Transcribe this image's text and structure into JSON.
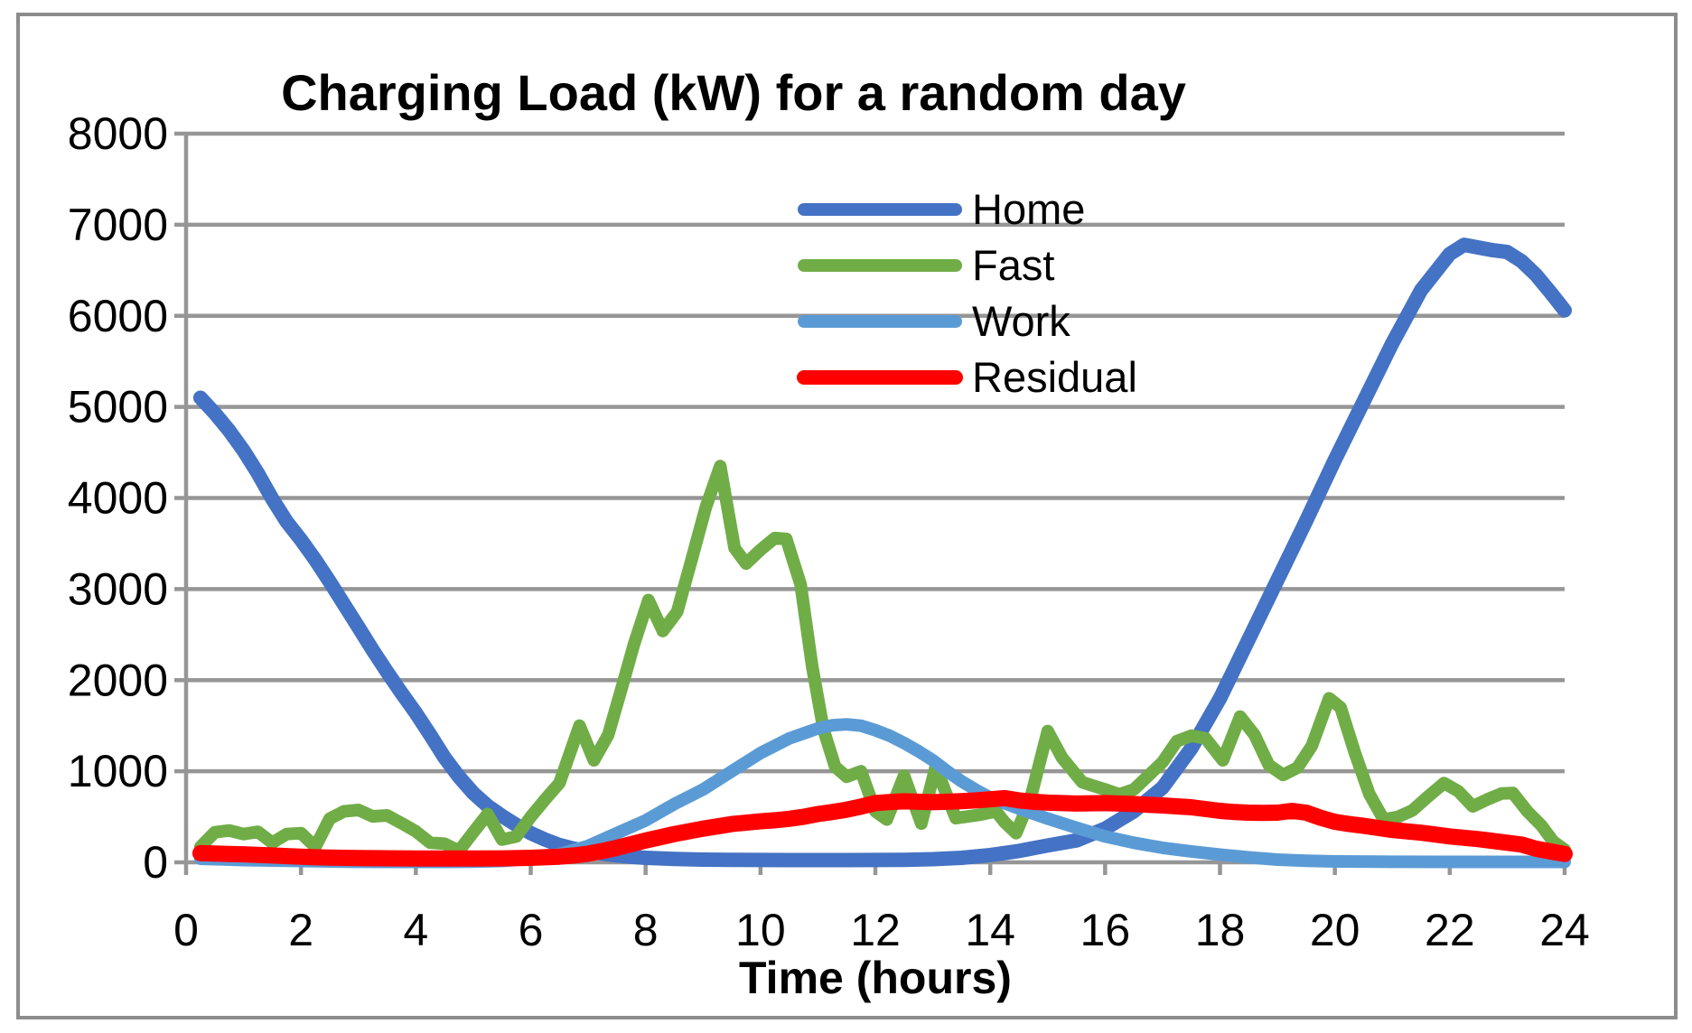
{
  "chart_data": {
    "type": "line",
    "title": "Charging Load (kW) for a random day",
    "xlabel": "Time (hours)",
    "ylabel": "",
    "xlim": [
      0,
      24
    ],
    "ylim": [
      0,
      8000
    ],
    "x_ticks": [
      0,
      2,
      4,
      6,
      8,
      10,
      12,
      14,
      16,
      18,
      20,
      22,
      24
    ],
    "y_ticks": [
      0,
      1000,
      2000,
      3000,
      4000,
      5000,
      6000,
      7000,
      8000
    ],
    "grid": true,
    "legend_position": "inside-top-center",
    "colors": {
      "grid": "#969696",
      "axis": "#969696",
      "frame": "#8c8c8c",
      "text": "#000000",
      "background": "#ffffff"
    },
    "series": [
      {
        "name": "Home",
        "color": "#4472C4",
        "stroke_width": 16,
        "points": [
          [
            0.25,
            5100
          ],
          [
            0.5,
            4930
          ],
          [
            0.75,
            4740
          ],
          [
            1,
            4520
          ],
          [
            1.25,
            4270
          ],
          [
            1.5,
            3990
          ],
          [
            1.75,
            3740
          ],
          [
            2,
            3540
          ],
          [
            2.25,
            3320
          ],
          [
            2.5,
            3080
          ],
          [
            2.75,
            2830
          ],
          [
            3,
            2580
          ],
          [
            3.25,
            2330
          ],
          [
            3.5,
            2090
          ],
          [
            3.75,
            1860
          ],
          [
            4,
            1640
          ],
          [
            4.25,
            1400
          ],
          [
            4.5,
            1150
          ],
          [
            4.75,
            940
          ],
          [
            5,
            760
          ],
          [
            5.25,
            620
          ],
          [
            5.5,
            510
          ],
          [
            5.75,
            410
          ],
          [
            6,
            320
          ],
          [
            6.25,
            250
          ],
          [
            6.5,
            190
          ],
          [
            6.75,
            150
          ],
          [
            7,
            120
          ],
          [
            7.25,
            95
          ],
          [
            7.5,
            75
          ],
          [
            7.75,
            60
          ],
          [
            8,
            50
          ],
          [
            8.5,
            38
          ],
          [
            9,
            30
          ],
          [
            9.5,
            28
          ],
          [
            10,
            26
          ],
          [
            10.5,
            25
          ],
          [
            11,
            25
          ],
          [
            11.5,
            25
          ],
          [
            12,
            26
          ],
          [
            12.5,
            28
          ],
          [
            13,
            35
          ],
          [
            13.5,
            50
          ],
          [
            14,
            80
          ],
          [
            14.5,
            125
          ],
          [
            15,
            185
          ],
          [
            15.5,
            240
          ],
          [
            16,
            370
          ],
          [
            16.5,
            560
          ],
          [
            17,
            820
          ],
          [
            17.5,
            1250
          ],
          [
            18,
            1800
          ],
          [
            18.5,
            2450
          ],
          [
            19,
            3100
          ],
          [
            19.5,
            3750
          ],
          [
            20,
            4420
          ],
          [
            20.5,
            5060
          ],
          [
            21,
            5700
          ],
          [
            21.5,
            6280
          ],
          [
            22,
            6680
          ],
          [
            22.25,
            6780
          ],
          [
            22.5,
            6750
          ],
          [
            22.75,
            6720
          ],
          [
            23,
            6700
          ],
          [
            23.25,
            6600
          ],
          [
            23.5,
            6450
          ],
          [
            23.75,
            6260
          ],
          [
            24,
            6060
          ]
        ]
      },
      {
        "name": "Fast",
        "color": "#70AD47",
        "stroke_width": 14,
        "points": [
          [
            0.25,
            170
          ],
          [
            0.5,
            330
          ],
          [
            0.75,
            350
          ],
          [
            1,
            310
          ],
          [
            1.25,
            335
          ],
          [
            1.5,
            215
          ],
          [
            1.75,
            310
          ],
          [
            2,
            320
          ],
          [
            2.25,
            170
          ],
          [
            2.5,
            480
          ],
          [
            2.75,
            560
          ],
          [
            3,
            575
          ],
          [
            3.25,
            505
          ],
          [
            3.5,
            515
          ],
          [
            3.75,
            430
          ],
          [
            4,
            340
          ],
          [
            4.25,
            215
          ],
          [
            4.5,
            205
          ],
          [
            4.75,
            125
          ],
          [
            5,
            330
          ],
          [
            5.25,
            530
          ],
          [
            5.5,
            250
          ],
          [
            5.75,
            285
          ],
          [
            6,
            500
          ],
          [
            6.25,
            690
          ],
          [
            6.5,
            870
          ],
          [
            6.85,
            1500
          ],
          [
            7.1,
            1120
          ],
          [
            7.35,
            1400
          ],
          [
            7.6,
            1950
          ],
          [
            7.8,
            2400
          ],
          [
            8.05,
            2880
          ],
          [
            8.3,
            2540
          ],
          [
            8.55,
            2750
          ],
          [
            8.8,
            3320
          ],
          [
            9.05,
            3900
          ],
          [
            9.3,
            4350
          ],
          [
            9.55,
            3450
          ],
          [
            9.75,
            3280
          ],
          [
            10,
            3430
          ],
          [
            10.25,
            3560
          ],
          [
            10.45,
            3550
          ],
          [
            10.7,
            3050
          ],
          [
            10.9,
            2150
          ],
          [
            11.1,
            1450
          ],
          [
            11.3,
            1050
          ],
          [
            11.5,
            940
          ],
          [
            11.75,
            1000
          ],
          [
            12,
            560
          ],
          [
            12.2,
            470
          ],
          [
            12.5,
            950
          ],
          [
            12.8,
            425
          ],
          [
            13.05,
            1050
          ],
          [
            13.4,
            485
          ],
          [
            13.8,
            520
          ],
          [
            14.1,
            560
          ],
          [
            14.25,
            440
          ],
          [
            14.45,
            320
          ],
          [
            14.7,
            700
          ],
          [
            15,
            1440
          ],
          [
            15.25,
            1150
          ],
          [
            15.6,
            880
          ],
          [
            15.75,
            850
          ],
          [
            16,
            800
          ],
          [
            16.25,
            745
          ],
          [
            16.5,
            800
          ],
          [
            16.75,
            950
          ],
          [
            17,
            1100
          ],
          [
            17.25,
            1330
          ],
          [
            17.5,
            1390
          ],
          [
            17.75,
            1360
          ],
          [
            18.05,
            1120
          ],
          [
            18.35,
            1600
          ],
          [
            18.6,
            1400
          ],
          [
            18.85,
            1070
          ],
          [
            19.1,
            960
          ],
          [
            19.35,
            1040
          ],
          [
            19.6,
            1280
          ],
          [
            19.9,
            1800
          ],
          [
            20.1,
            1700
          ],
          [
            20.35,
            1200
          ],
          [
            20.6,
            750
          ],
          [
            20.85,
            470
          ],
          [
            21.1,
            500
          ],
          [
            21.35,
            570
          ],
          [
            21.6,
            710
          ],
          [
            21.9,
            870
          ],
          [
            22.15,
            780
          ],
          [
            22.4,
            615
          ],
          [
            22.65,
            690
          ],
          [
            22.9,
            755
          ],
          [
            23.1,
            760
          ],
          [
            23.35,
            560
          ],
          [
            23.6,
            400
          ],
          [
            23.8,
            230
          ],
          [
            24,
            140
          ]
        ]
      },
      {
        "name": "Work",
        "color": "#5B9BD5",
        "stroke_width": 14,
        "points": [
          [
            0.25,
            40
          ],
          [
            0.5,
            35
          ],
          [
            1,
            25
          ],
          [
            1.5,
            20
          ],
          [
            2,
            15
          ],
          [
            2.5,
            10
          ],
          [
            3,
            6
          ],
          [
            3.5,
            5
          ],
          [
            4,
            5
          ],
          [
            4.5,
            5
          ],
          [
            5,
            8
          ],
          [
            5.5,
            15
          ],
          [
            6,
            40
          ],
          [
            6.5,
            90
          ],
          [
            7,
            180
          ],
          [
            7.5,
            320
          ],
          [
            8,
            460
          ],
          [
            8.5,
            640
          ],
          [
            9,
            800
          ],
          [
            9.5,
            1000
          ],
          [
            10,
            1200
          ],
          [
            10.5,
            1360
          ],
          [
            11,
            1470
          ],
          [
            11.25,
            1505
          ],
          [
            11.5,
            1515
          ],
          [
            11.75,
            1500
          ],
          [
            12,
            1450
          ],
          [
            12.25,
            1390
          ],
          [
            12.5,
            1310
          ],
          [
            12.75,
            1220
          ],
          [
            13,
            1120
          ],
          [
            13.25,
            1000
          ],
          [
            13.5,
            890
          ],
          [
            13.75,
            795
          ],
          [
            14,
            710
          ],
          [
            14.5,
            590
          ],
          [
            15,
            480
          ],
          [
            15.5,
            380
          ],
          [
            16,
            285
          ],
          [
            16.5,
            215
          ],
          [
            17,
            160
          ],
          [
            17.5,
            120
          ],
          [
            18,
            85
          ],
          [
            18.5,
            55
          ],
          [
            19,
            30
          ],
          [
            19.5,
            18
          ],
          [
            20,
            10
          ],
          [
            21,
            6
          ],
          [
            22,
            5
          ],
          [
            23,
            5
          ],
          [
            24,
            5
          ]
        ]
      },
      {
        "name": "Residual",
        "color": "#FF0000",
        "stroke_width": 18,
        "points": [
          [
            0.25,
            100
          ],
          [
            0.5,
            96
          ],
          [
            0.75,
            92
          ],
          [
            1,
            88
          ],
          [
            1.25,
            82
          ],
          [
            1.5,
            75
          ],
          [
            1.75,
            68
          ],
          [
            2,
            62
          ],
          [
            2.25,
            56
          ],
          [
            2.5,
            52
          ],
          [
            2.75,
            50
          ],
          [
            3,
            48
          ],
          [
            3.25,
            46
          ],
          [
            3.5,
            45
          ],
          [
            4,
            43
          ],
          [
            4.5,
            42
          ],
          [
            5,
            42
          ],
          [
            5.5,
            44
          ],
          [
            6,
            50
          ],
          [
            6.5,
            62
          ],
          [
            6.75,
            75
          ],
          [
            7,
            95
          ],
          [
            7.25,
            125
          ],
          [
            7.5,
            160
          ],
          [
            7.75,
            200
          ],
          [
            8,
            240
          ],
          [
            8.25,
            275
          ],
          [
            8.5,
            310
          ],
          [
            8.75,
            340
          ],
          [
            9,
            370
          ],
          [
            9.25,
            395
          ],
          [
            9.5,
            420
          ],
          [
            9.75,
            435
          ],
          [
            10,
            450
          ],
          [
            10.25,
            462
          ],
          [
            10.5,
            478
          ],
          [
            10.75,
            500
          ],
          [
            11,
            530
          ],
          [
            11.25,
            552
          ],
          [
            11.5,
            578
          ],
          [
            11.75,
            612
          ],
          [
            12,
            650
          ],
          [
            12.25,
            662
          ],
          [
            12.5,
            670
          ],
          [
            12.75,
            665
          ],
          [
            13,
            660
          ],
          [
            13.25,
            665
          ],
          [
            13.5,
            672
          ],
          [
            13.75,
            680
          ],
          [
            14,
            692
          ],
          [
            14.25,
            705
          ],
          [
            14.5,
            680
          ],
          [
            14.75,
            665
          ],
          [
            15,
            655
          ],
          [
            15.25,
            650
          ],
          [
            15.5,
            645
          ],
          [
            15.75,
            648
          ],
          [
            16,
            650
          ],
          [
            16.25,
            645
          ],
          [
            16.5,
            640
          ],
          [
            16.75,
            632
          ],
          [
            17,
            625
          ],
          [
            17.25,
            615
          ],
          [
            17.5,
            605
          ],
          [
            17.75,
            585
          ],
          [
            18,
            565
          ],
          [
            18.25,
            552
          ],
          [
            18.5,
            545
          ],
          [
            18.75,
            542
          ],
          [
            19,
            545
          ],
          [
            19.25,
            565
          ],
          [
            19.5,
            545
          ],
          [
            19.75,
            490
          ],
          [
            20,
            445
          ],
          [
            20.25,
            420
          ],
          [
            20.5,
            400
          ],
          [
            20.75,
            378
          ],
          [
            21,
            355
          ],
          [
            21.25,
            340
          ],
          [
            21.5,
            325
          ],
          [
            21.75,
            305
          ],
          [
            22,
            285
          ],
          [
            22.25,
            270
          ],
          [
            22.5,
            255
          ],
          [
            22.75,
            235
          ],
          [
            23,
            215
          ],
          [
            23.25,
            195
          ],
          [
            23.5,
            150
          ],
          [
            23.75,
            120
          ],
          [
            24,
            92
          ]
        ]
      }
    ]
  }
}
